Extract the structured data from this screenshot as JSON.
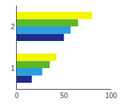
{
  "chart_data": {
    "type": "bar",
    "orientation": "horizontal",
    "categories": [
      "1",
      "2"
    ],
    "series": [
      {
        "color": "#f5f500",
        "values": [
          42,
          80
        ]
      },
      {
        "color": "#5ab92a",
        "values": [
          35,
          65
        ]
      },
      {
        "color": "#2b9de0",
        "values": [
          27,
          57
        ]
      },
      {
        "color": "#1c2c8a",
        "values": [
          16,
          50
        ]
      }
    ],
    "xlim": [
      0,
      100
    ],
    "xticks": [
      0,
      50,
      100
    ],
    "grid": false
  }
}
